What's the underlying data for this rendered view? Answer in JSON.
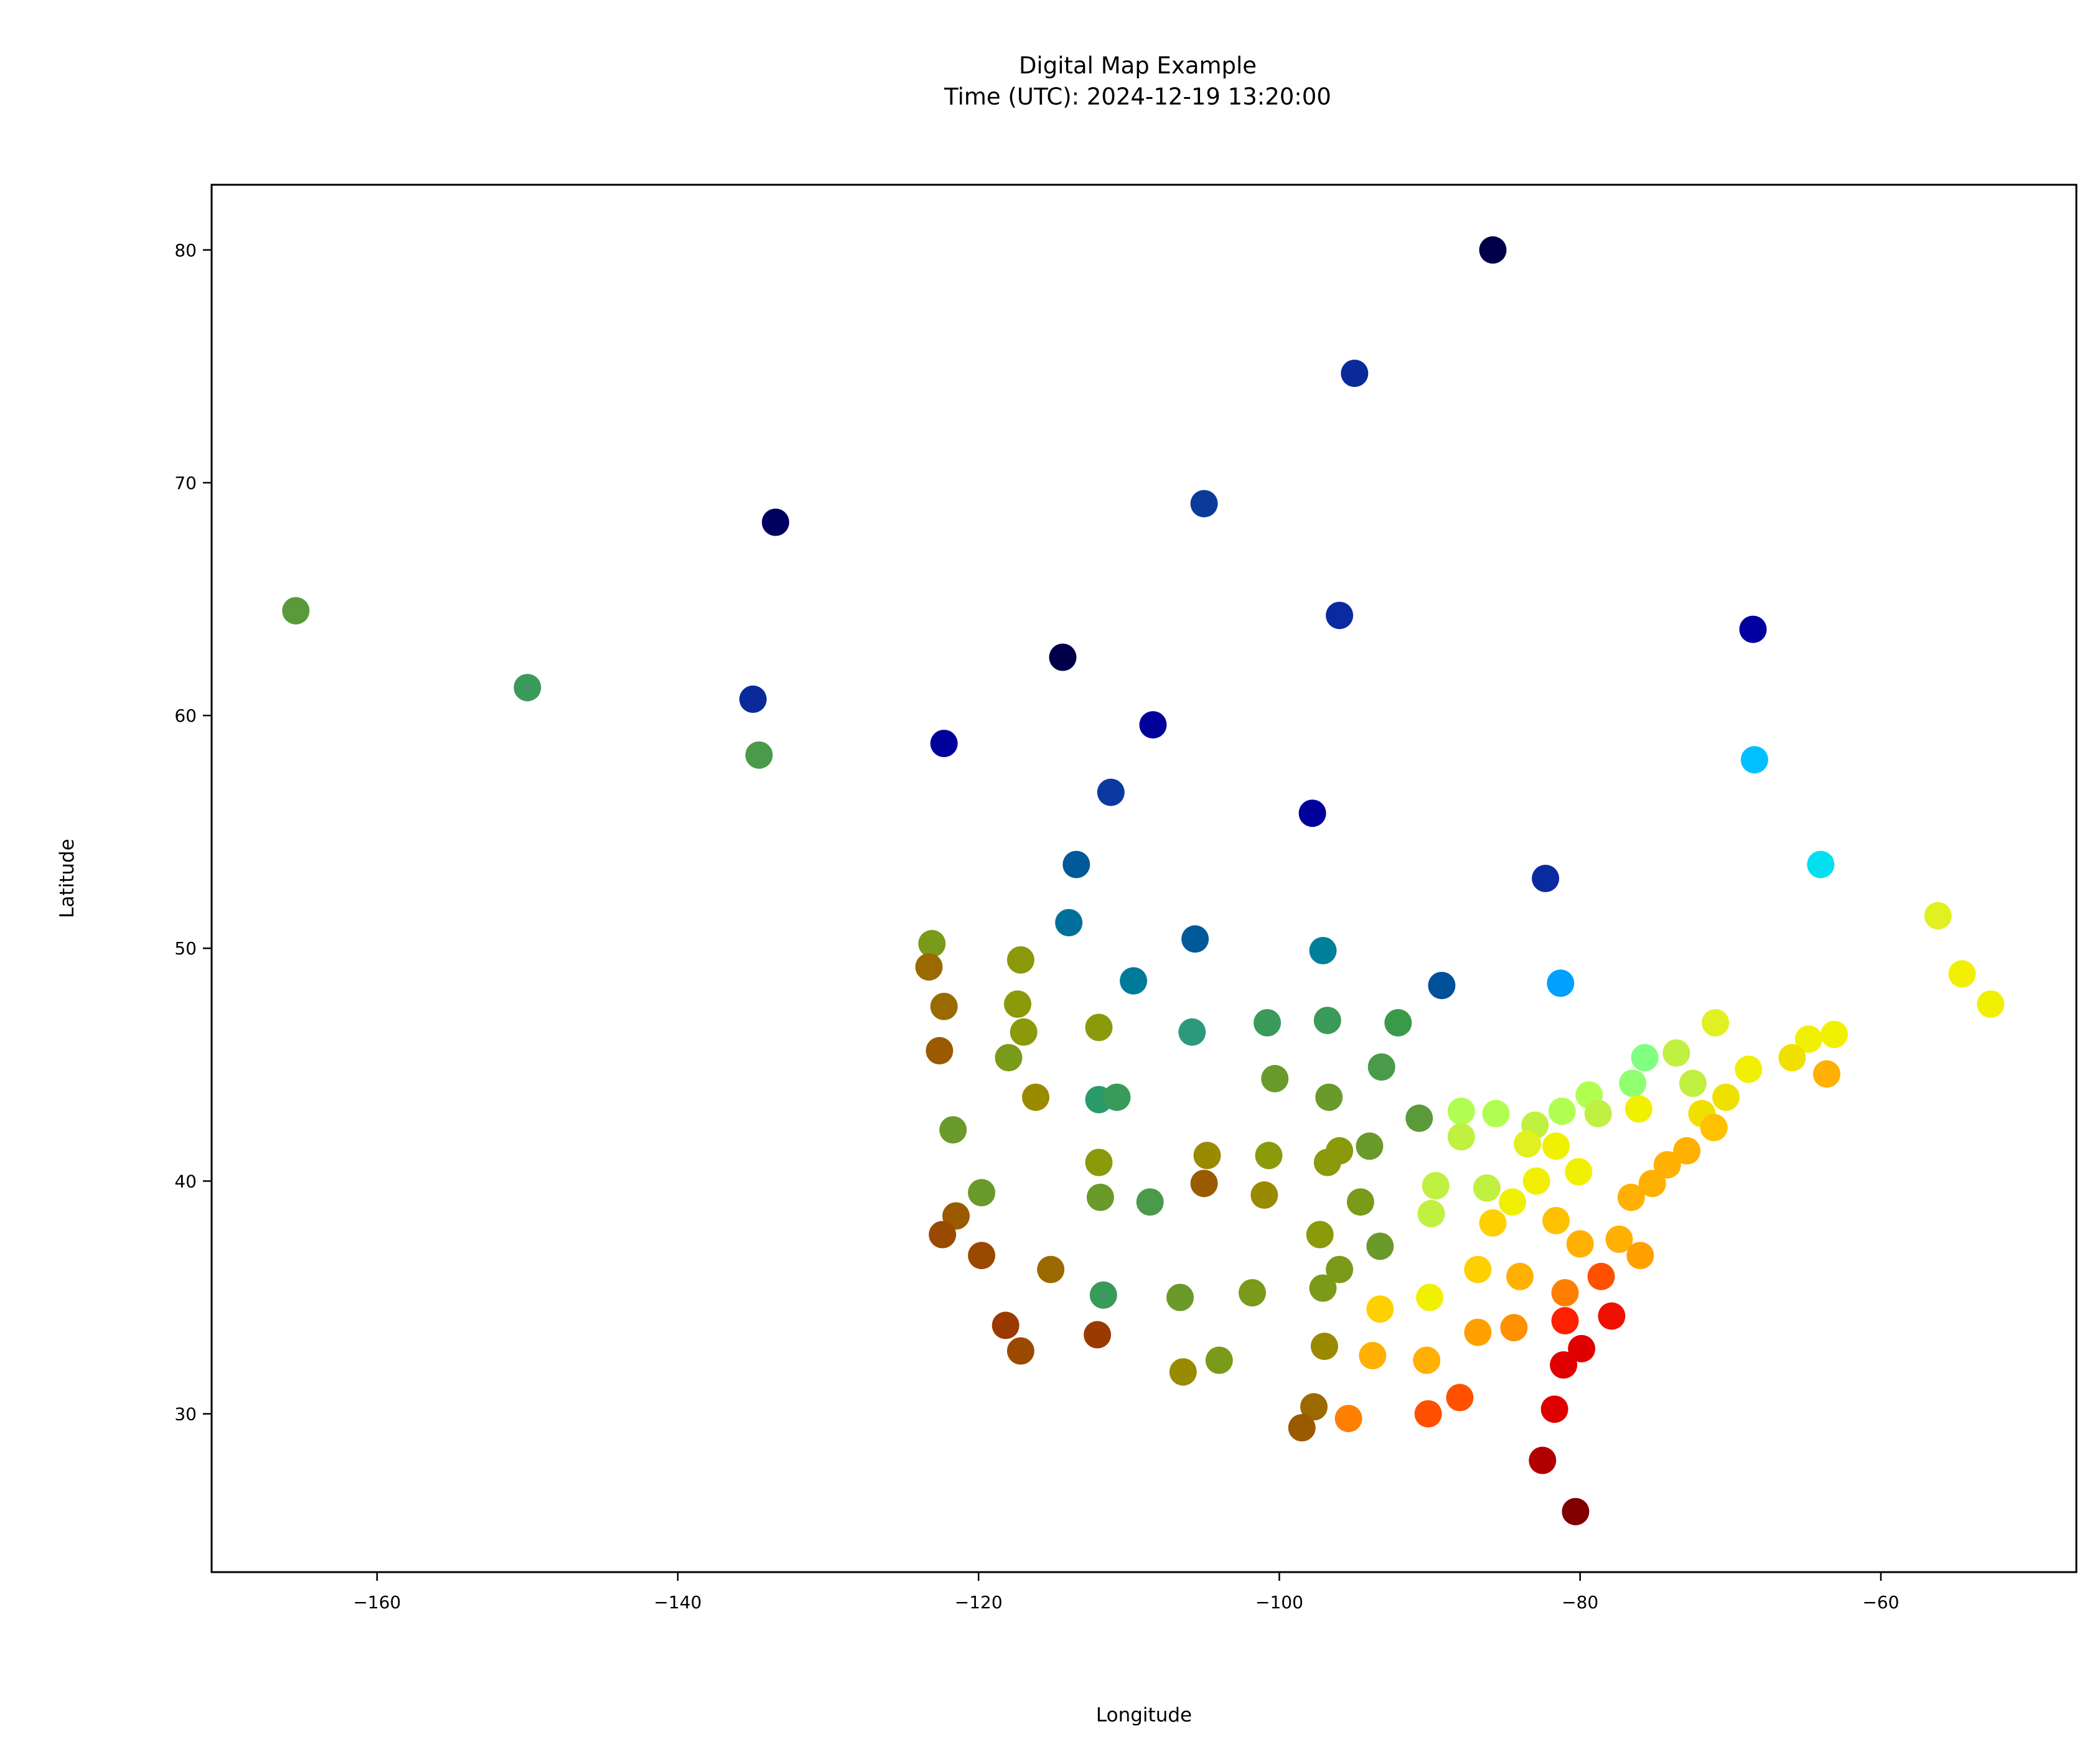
{
  "chart_data": {
    "type": "scatter",
    "title": "Digital Map Example",
    "subtitle": "Time (UTC): 2024-12-19 13:20:00",
    "xlabel": "Longitude",
    "ylabel": "Latitude",
    "xlim": [
      -171,
      -47
    ],
    "ylim": [
      23.2,
      82.8
    ],
    "xticks": [
      -160,
      -140,
      -120,
      -100,
      -80,
      -60
    ],
    "yticks": [
      30,
      40,
      50,
      60,
      70,
      80
    ],
    "xtick_labels": [
      "−160",
      "−140",
      "−120",
      "−100",
      "−80",
      "−60"
    ],
    "ytick_labels": [
      "30",
      "40",
      "50",
      "60",
      "70",
      "80"
    ],
    "grid": false,
    "legend": "none",
    "colormap": "jet",
    "points": [
      {
        "x": -85.8,
        "y": 80.0,
        "color": "#00004a"
      },
      {
        "x": -95.0,
        "y": 74.7,
        "color": "#0a2a9a"
      },
      {
        "x": -133.5,
        "y": 68.3,
        "color": "#000060"
      },
      {
        "x": -105.0,
        "y": 69.1,
        "color": "#0a3a9a"
      },
      {
        "x": -165.4,
        "y": 64.5,
        "color": "#5a9a3a"
      },
      {
        "x": -96.0,
        "y": 64.3,
        "color": "#0a2aa0"
      },
      {
        "x": -68.5,
        "y": 63.7,
        "color": "#0000a0"
      },
      {
        "x": -114.4,
        "y": 62.5,
        "color": "#00004a"
      },
      {
        "x": -150.0,
        "y": 61.2,
        "color": "#3a9a5a"
      },
      {
        "x": -135.0,
        "y": 60.7,
        "color": "#0a2a9a"
      },
      {
        "x": -108.4,
        "y": 59.6,
        "color": "#00009a"
      },
      {
        "x": -122.3,
        "y": 58.8,
        "color": "#00009a"
      },
      {
        "x": -134.6,
        "y": 58.3,
        "color": "#4a9a4a"
      },
      {
        "x": -68.4,
        "y": 58.1,
        "color": "#00c0ff"
      },
      {
        "x": -111.2,
        "y": 56.7,
        "color": "#0a3aa0"
      },
      {
        "x": -97.8,
        "y": 55.8,
        "color": "#00009a"
      },
      {
        "x": -64.0,
        "y": 53.6,
        "color": "#00e0f0"
      },
      {
        "x": -113.5,
        "y": 53.6,
        "color": "#005a9a"
      },
      {
        "x": -82.3,
        "y": 53.0,
        "color": "#0a2aa0"
      },
      {
        "x": -56.2,
        "y": 51.4,
        "color": "#e0f020"
      },
      {
        "x": -114.0,
        "y": 51.1,
        "color": "#00709a"
      },
      {
        "x": -105.6,
        "y": 50.4,
        "color": "#005a9a"
      },
      {
        "x": -123.1,
        "y": 50.2,
        "color": "#7a9a1a"
      },
      {
        "x": -97.1,
        "y": 49.9,
        "color": "#00809a"
      },
      {
        "x": -117.2,
        "y": 49.5,
        "color": "#8a9a0a"
      },
      {
        "x": -123.3,
        "y": 49.2,
        "color": "#9a6a00"
      },
      {
        "x": -54.6,
        "y": 48.9,
        "color": "#f0f000"
      },
      {
        "x": -81.3,
        "y": 48.5,
        "color": "#00a0ff"
      },
      {
        "x": -109.7,
        "y": 48.6,
        "color": "#007a9a"
      },
      {
        "x": -89.2,
        "y": 48.4,
        "color": "#00509a"
      },
      {
        "x": -52.7,
        "y": 47.6,
        "color": "#f0f000"
      },
      {
        "x": -122.3,
        "y": 47.5,
        "color": "#9a6a00"
      },
      {
        "x": -117.4,
        "y": 47.6,
        "color": "#8a9a0a"
      },
      {
        "x": -100.8,
        "y": 46.8,
        "color": "#3a9a5a"
      },
      {
        "x": -96.8,
        "y": 46.9,
        "color": "#3a9a5a"
      },
      {
        "x": -92.1,
        "y": 46.8,
        "color": "#3a9a4a"
      },
      {
        "x": -71.0,
        "y": 46.8,
        "color": "#e0f020"
      },
      {
        "x": -112.0,
        "y": 46.6,
        "color": "#8a9a0a"
      },
      {
        "x": -105.8,
        "y": 46.4,
        "color": "#2a9a7a"
      },
      {
        "x": -117.0,
        "y": 46.4,
        "color": "#8a9a0a"
      },
      {
        "x": -63.1,
        "y": 46.3,
        "color": "#f0f000"
      },
      {
        "x": -64.8,
        "y": 46.1,
        "color": "#f0f000"
      },
      {
        "x": -122.6,
        "y": 45.6,
        "color": "#9a5a00"
      },
      {
        "x": -73.6,
        "y": 45.5,
        "color": "#c0f040"
      },
      {
        "x": -75.7,
        "y": 45.3,
        "color": "#80ff80"
      },
      {
        "x": -65.9,
        "y": 45.3,
        "color": "#f0e000"
      },
      {
        "x": -118.0,
        "y": 45.3,
        "color": "#7a9a1a"
      },
      {
        "x": -93.2,
        "y": 44.9,
        "color": "#4a9a4a"
      },
      {
        "x": -68.8,
        "y": 44.8,
        "color": "#f0f000"
      },
      {
        "x": -63.6,
        "y": 44.6,
        "color": "#ffb000"
      },
      {
        "x": -100.3,
        "y": 44.4,
        "color": "#6a9a2a"
      },
      {
        "x": -76.5,
        "y": 44.2,
        "color": "#90ff70"
      },
      {
        "x": -72.5,
        "y": 44.2,
        "color": "#c0f040"
      },
      {
        "x": -79.4,
        "y": 43.7,
        "color": "#b0ff50"
      },
      {
        "x": -70.3,
        "y": 43.6,
        "color": "#f0e000"
      },
      {
        "x": -96.7,
        "y": 43.6,
        "color": "#6a9a2a"
      },
      {
        "x": -116.2,
        "y": 43.6,
        "color": "#9a8a00"
      },
      {
        "x": -112.0,
        "y": 43.5,
        "color": "#2a9a6a"
      },
      {
        "x": -110.8,
        "y": 43.6,
        "color": "#3a9a5a"
      },
      {
        "x": -76.1,
        "y": 43.1,
        "color": "#f0f000"
      },
      {
        "x": -87.9,
        "y": 43.0,
        "color": "#b0ff50"
      },
      {
        "x": -85.6,
        "y": 42.9,
        "color": "#b0ff50"
      },
      {
        "x": -78.8,
        "y": 42.9,
        "color": "#c0f040"
      },
      {
        "x": -71.9,
        "y": 42.9,
        "color": "#f0e000"
      },
      {
        "x": -81.2,
        "y": 43.0,
        "color": "#b0ff50"
      },
      {
        "x": -90.7,
        "y": 42.7,
        "color": "#5a9a3a"
      },
      {
        "x": -83.0,
        "y": 42.4,
        "color": "#c0f040"
      },
      {
        "x": -71.1,
        "y": 42.3,
        "color": "#ffc000"
      },
      {
        "x": -121.7,
        "y": 42.2,
        "color": "#6a9a2a"
      },
      {
        "x": -87.9,
        "y": 41.9,
        "color": "#c0f040"
      },
      {
        "x": -83.5,
        "y": 41.6,
        "color": "#e0f020"
      },
      {
        "x": -94.0,
        "y": 41.5,
        "color": "#6a9a2a"
      },
      {
        "x": -81.6,
        "y": 41.5,
        "color": "#f0f000"
      },
      {
        "x": -72.9,
        "y": 41.3,
        "color": "#ffb000"
      },
      {
        "x": -96.0,
        "y": 41.3,
        "color": "#8a9a0a"
      },
      {
        "x": -100.7,
        "y": 41.1,
        "color": "#8a9a0a"
      },
      {
        "x": -104.8,
        "y": 41.1,
        "color": "#9a8a00"
      },
      {
        "x": -112.0,
        "y": 40.8,
        "color": "#8a9a0a"
      },
      {
        "x": -96.8,
        "y": 40.8,
        "color": "#8a9a0a"
      },
      {
        "x": -74.2,
        "y": 40.7,
        "color": "#ffb000"
      },
      {
        "x": -80.1,
        "y": 40.4,
        "color": "#f0f000"
      },
      {
        "x": -82.9,
        "y": 40.0,
        "color": "#f0f000"
      },
      {
        "x": -105.0,
        "y": 39.9,
        "color": "#9a5a00"
      },
      {
        "x": -75.2,
        "y": 39.9,
        "color": "#ffb000"
      },
      {
        "x": -89.6,
        "y": 39.8,
        "color": "#c0f040"
      },
      {
        "x": -86.2,
        "y": 39.7,
        "color": "#c0f040"
      },
      {
        "x": -119.8,
        "y": 39.5,
        "color": "#6a9a2a"
      },
      {
        "x": -101.0,
        "y": 39.4,
        "color": "#9a8a00"
      },
      {
        "x": -111.9,
        "y": 39.3,
        "color": "#6a9a2a"
      },
      {
        "x": -76.6,
        "y": 39.3,
        "color": "#ffb000"
      },
      {
        "x": -84.5,
        "y": 39.1,
        "color": "#f0f000"
      },
      {
        "x": -108.6,
        "y": 39.1,
        "color": "#4a9a4a"
      },
      {
        "x": -94.6,
        "y": 39.1,
        "color": "#7a9a1a"
      },
      {
        "x": -89.9,
        "y": 38.6,
        "color": "#c0f040"
      },
      {
        "x": -121.5,
        "y": 38.5,
        "color": "#9a5a00"
      },
      {
        "x": -81.6,
        "y": 38.3,
        "color": "#ffc000"
      },
      {
        "x": -85.8,
        "y": 38.2,
        "color": "#ffd000"
      },
      {
        "x": -97.3,
        "y": 37.7,
        "color": "#8a9a0a"
      },
      {
        "x": -122.4,
        "y": 37.7,
        "color": "#9a4a00"
      },
      {
        "x": -77.4,
        "y": 37.5,
        "color": "#ffb000"
      },
      {
        "x": -80.0,
        "y": 37.3,
        "color": "#ffb000"
      },
      {
        "x": -93.3,
        "y": 37.2,
        "color": "#6a9a2a"
      },
      {
        "x": -119.8,
        "y": 36.8,
        "color": "#9a4a00"
      },
      {
        "x": -76.0,
        "y": 36.8,
        "color": "#ffa000"
      },
      {
        "x": -115.2,
        "y": 36.2,
        "color": "#9a6a00"
      },
      {
        "x": -86.8,
        "y": 36.2,
        "color": "#ffd000"
      },
      {
        "x": -96.0,
        "y": 36.2,
        "color": "#7a9a1a"
      },
      {
        "x": -78.6,
        "y": 35.9,
        "color": "#ff5000"
      },
      {
        "x": -84.0,
        "y": 35.9,
        "color": "#ffb000"
      },
      {
        "x": -101.8,
        "y": 35.2,
        "color": "#7a9a1a"
      },
      {
        "x": -81.0,
        "y": 35.2,
        "color": "#ff8000"
      },
      {
        "x": -97.1,
        "y": 35.4,
        "color": "#7a9a1a"
      },
      {
        "x": -111.7,
        "y": 35.1,
        "color": "#3a9a5a"
      },
      {
        "x": -106.6,
        "y": 35.0,
        "color": "#6a9a2a"
      },
      {
        "x": -90.0,
        "y": 35.0,
        "color": "#f0f000"
      },
      {
        "x": -93.3,
        "y": 34.5,
        "color": "#ffd000"
      },
      {
        "x": -77.9,
        "y": 34.2,
        "color": "#f01000"
      },
      {
        "x": -81.0,
        "y": 34.0,
        "color": "#ff2000"
      },
      {
        "x": -118.2,
        "y": 33.8,
        "color": "#9a3a00"
      },
      {
        "x": -84.4,
        "y": 33.7,
        "color": "#ff9000"
      },
      {
        "x": -86.8,
        "y": 33.5,
        "color": "#ffa000"
      },
      {
        "x": -112.1,
        "y": 33.4,
        "color": "#9a3a00"
      },
      {
        "x": -97.0,
        "y": 32.9,
        "color": "#9a8a00"
      },
      {
        "x": -117.2,
        "y": 32.7,
        "color": "#9a4a00"
      },
      {
        "x": -79.9,
        "y": 32.8,
        "color": "#e00000"
      },
      {
        "x": -93.8,
        "y": 32.5,
        "color": "#ffb000"
      },
      {
        "x": -90.2,
        "y": 32.3,
        "color": "#ffb000"
      },
      {
        "x": -104.0,
        "y": 32.3,
        "color": "#7a9a1a"
      },
      {
        "x": -81.1,
        "y": 32.1,
        "color": "#e00000"
      },
      {
        "x": -106.4,
        "y": 31.8,
        "color": "#9a8a00"
      },
      {
        "x": -88.0,
        "y": 30.7,
        "color": "#ff5000"
      },
      {
        "x": -97.7,
        "y": 30.3,
        "color": "#9a6a00"
      },
      {
        "x": -81.7,
        "y": 30.2,
        "color": "#e00000"
      },
      {
        "x": -90.1,
        "y": 30.0,
        "color": "#ff5000"
      },
      {
        "x": -95.4,
        "y": 29.8,
        "color": "#ff8000"
      },
      {
        "x": -98.5,
        "y": 29.4,
        "color": "#9a5a00"
      },
      {
        "x": -82.5,
        "y": 28.0,
        "color": "#b00000"
      },
      {
        "x": -80.3,
        "y": 25.8,
        "color": "#800000"
      }
    ]
  }
}
